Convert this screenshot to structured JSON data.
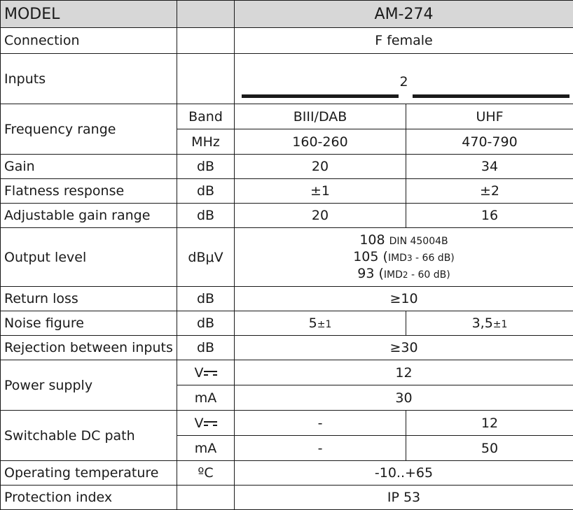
{
  "header": {
    "model_label": "MODEL",
    "model_value": "AM-274"
  },
  "rows": {
    "connection": {
      "label": "Connection",
      "value": "F female"
    },
    "inputs": {
      "label": "Inputs",
      "value": "2"
    },
    "frequency": {
      "label": "Frequency range",
      "band_unit": "Band",
      "band_1": "BIII/DAB",
      "band_2": "UHF",
      "mhz_unit": "MHz",
      "mhz_1": "160-260",
      "mhz_2": "470-790"
    },
    "gain": {
      "label": "Gain",
      "unit": "dB",
      "v1": "20",
      "v2": "34"
    },
    "flatness": {
      "label": "Flatness response",
      "unit": "dB",
      "v1": "±1",
      "v2": "±2"
    },
    "adjustable": {
      "label": "Adjustable gain range",
      "unit": "dB",
      "v1": "20",
      "v2": "16"
    },
    "output": {
      "label": "Output level",
      "unit": "dBμV",
      "line1_value": "108",
      "line1_note": "DIN 45004B",
      "line2_value": "105",
      "line2_note_open": "(",
      "line2_note_a": "IMD",
      "line2_note_sub": "3",
      "line2_note_b": " - 66 dB)",
      "line3_value": "93",
      "line3_note_open": "(",
      "line3_note_a": "IMD",
      "line3_note_sub": "2",
      "line3_note_b": " - 60 dB)"
    },
    "return_loss": {
      "label": "Return loss",
      "unit": "dB",
      "value": "≥10"
    },
    "noise": {
      "label": "Noise figure",
      "unit": "dB",
      "v1": "5",
      "v1_tol": "±1",
      "v2": "3,5",
      "v2_tol": "±1"
    },
    "rejection": {
      "label": "Rejection between inputs",
      "unit": "dB",
      "value": "≥30"
    },
    "power": {
      "label": "Power supply",
      "unit_v": "V",
      "value_v": "12",
      "unit_ma": "mA",
      "value_ma": "30"
    },
    "dc_path": {
      "label": "Switchable DC path",
      "unit_v": "V",
      "v1": "-",
      "v2": "12",
      "unit_ma": "mA",
      "ma1": "-",
      "ma2": "50"
    },
    "temperature": {
      "label": "Operating temperature",
      "unit": "ºC",
      "value": "-10..+65"
    },
    "protection": {
      "label": "Protection index",
      "value": "IP 53"
    }
  },
  "colors": {
    "header_bg": "#d7d7d7",
    "border": "#1a1a1a"
  }
}
